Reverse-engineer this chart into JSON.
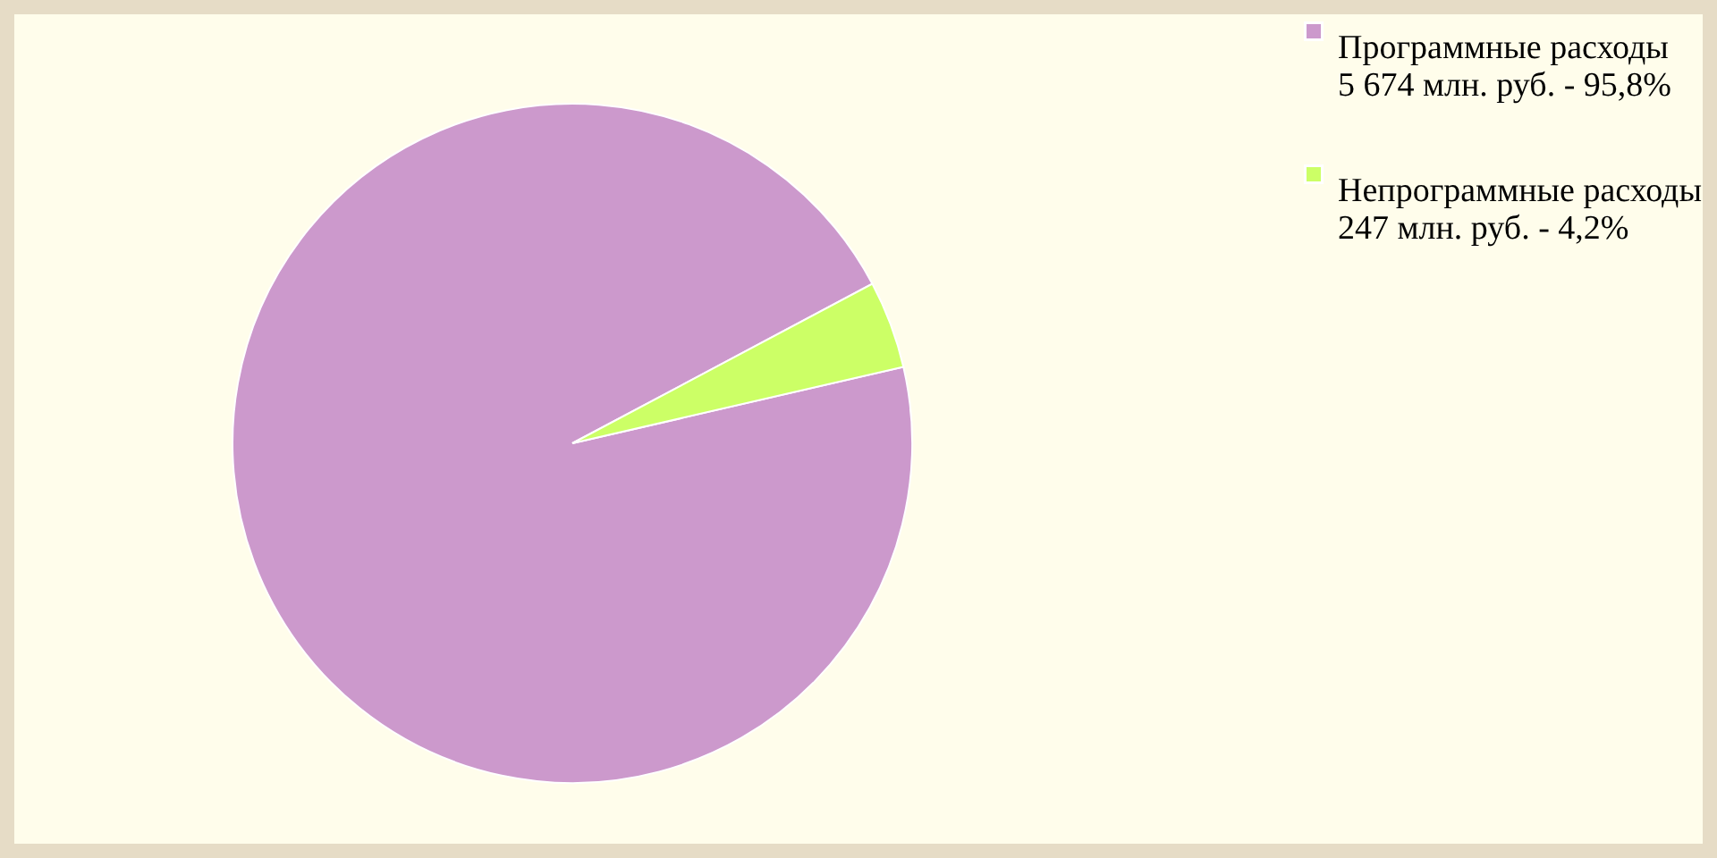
{
  "chart_data": {
    "type": "pie",
    "categories": [
      "Программные расходы",
      "Непрограммные расходы"
    ],
    "values": [
      5674,
      247
    ],
    "value_labels": [
      "5 674 млн. руб. - 95,8%",
      "247 млн. руб. - 4,2%"
    ],
    "colors": [
      "#cc99cc",
      "#ccff66"
    ],
    "legend": "right"
  }
}
